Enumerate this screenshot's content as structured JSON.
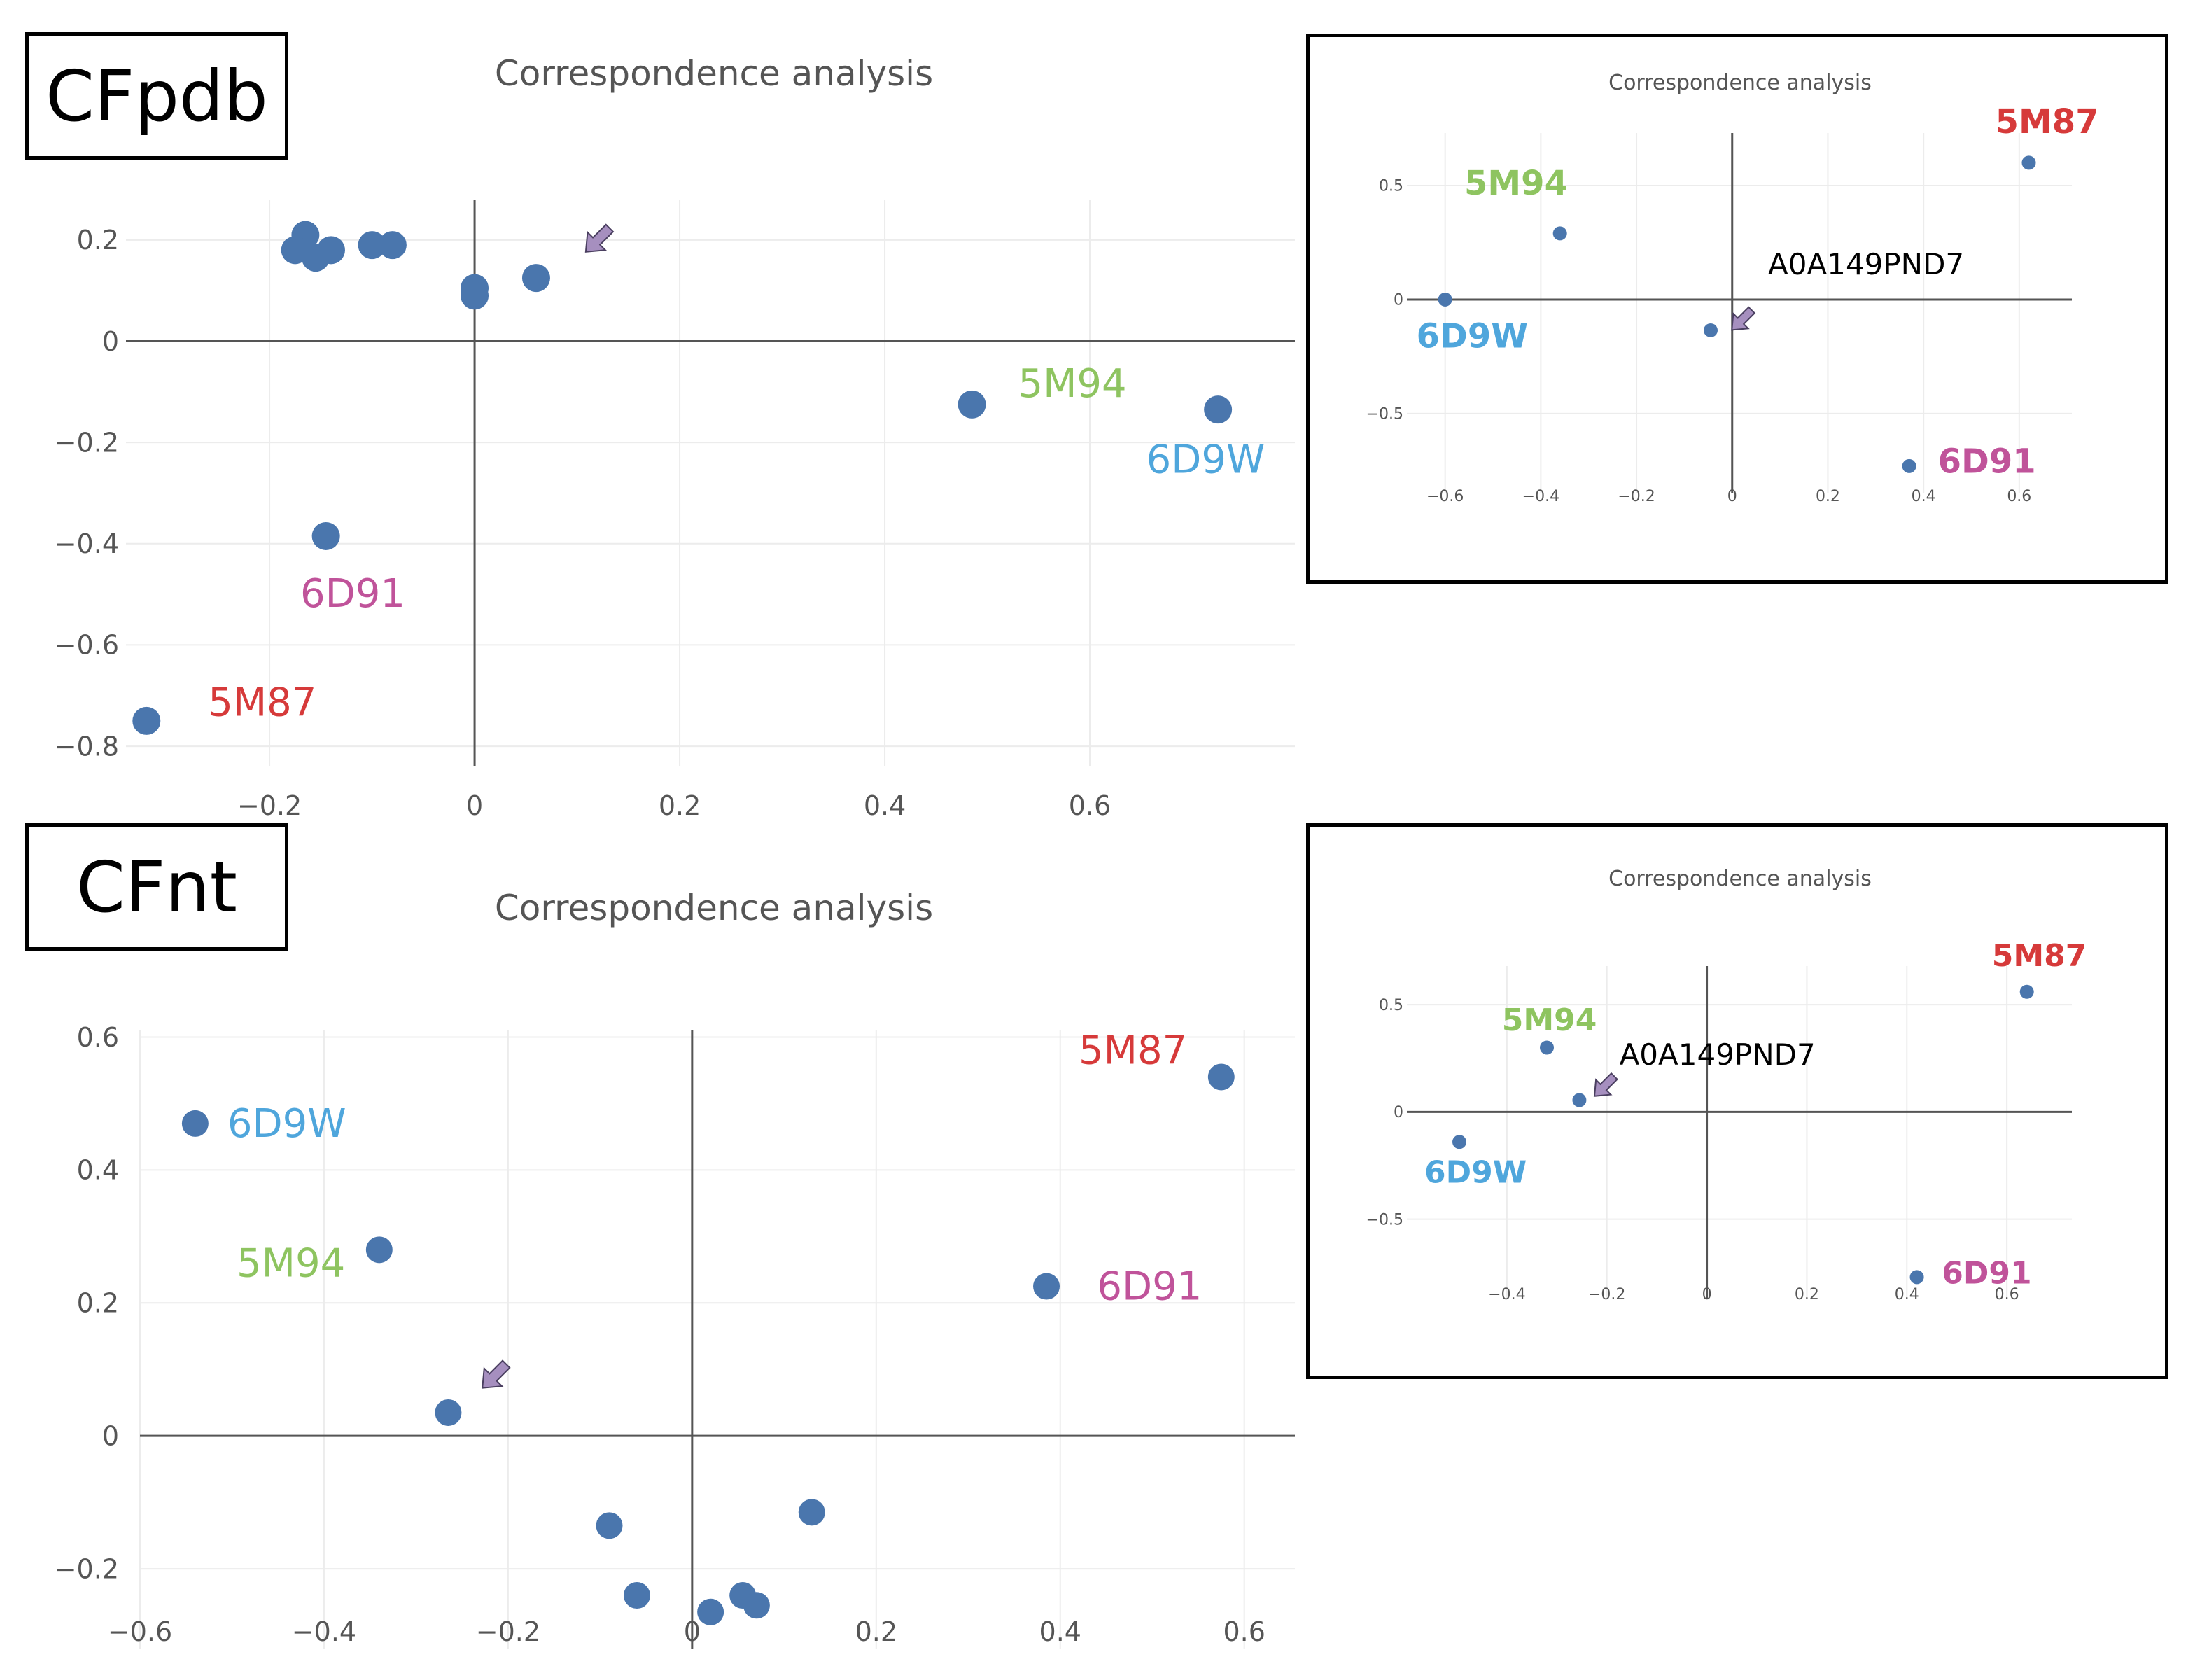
{
  "panels": [
    {
      "label": "CFpdb"
    },
    {
      "label": "CFnt"
    }
  ],
  "colors": {
    "point": "#4a76ad",
    "arrow": "#a68fbf",
    "arrow_stroke": "#4a3f60",
    "grid": "#ececec",
    "zeroline": "#555555",
    "5M87": "#d63a3a",
    "5M94": "#8ec460",
    "6D9W": "#4fa6dc",
    "6D91": "#c0539a"
  },
  "chart_data": [
    {
      "type": "scatter",
      "title": "Correspondence analysis",
      "xticks": [
        "−0.2",
        "0",
        "0.2",
        "0.4",
        "0.6"
      ],
      "xtick_values": [
        -0.2,
        0,
        0.2,
        0.4,
        0.6
      ],
      "yticks": [
        "0.2",
        "0",
        "−0.2",
        "−0.4",
        "−0.6",
        "−0.8"
      ],
      "ytick_values": [
        0.2,
        0,
        -0.2,
        -0.4,
        -0.6,
        -0.8
      ],
      "xlim": [
        -0.34,
        0.8
      ],
      "ylim": [
        -0.84,
        0.28
      ],
      "points": [
        {
          "x": -0.165,
          "y": 0.21
        },
        {
          "x": -0.175,
          "y": 0.18
        },
        {
          "x": -0.155,
          "y": 0.165
        },
        {
          "x": -0.14,
          "y": 0.18
        },
        {
          "x": -0.1,
          "y": 0.19
        },
        {
          "x": -0.08,
          "y": 0.19
        },
        {
          "x": 0.0,
          "y": 0.105
        },
        {
          "x": 0.0,
          "y": 0.09
        },
        {
          "x": 0.06,
          "y": 0.125
        },
        {
          "x": 0.485,
          "y": -0.125
        },
        {
          "x": 0.725,
          "y": -0.135
        },
        {
          "x": -0.145,
          "y": -0.385
        },
        {
          "x": -0.32,
          "y": -0.75
        }
      ],
      "labels": [
        {
          "text": "5M94",
          "x": 0.53,
          "y": -0.11,
          "color_key": "5M94"
        },
        {
          "text": "6D9W",
          "x": 0.655,
          "y": -0.26,
          "color_key": "6D9W"
        },
        {
          "text": "6D91",
          "x": -0.17,
          "y": -0.525,
          "color_key": "6D91"
        },
        {
          "text": "5M87",
          "x": -0.26,
          "y": -0.74,
          "color_key": "5M87"
        }
      ],
      "arrow": {
        "x": 0.12,
        "y": 0.2,
        "direction": "down-left"
      }
    },
    {
      "type": "scatter",
      "title": "Correspondence analysis",
      "xticks": [
        "−0.6",
        "−0.4",
        "−0.2",
        "0",
        "0.2",
        "0.4",
        "0.6"
      ],
      "xtick_values": [
        -0.6,
        -0.4,
        -0.2,
        0,
        0.2,
        0.4,
        0.6
      ],
      "yticks": [
        "0.6",
        "0.4",
        "0.2",
        "0",
        "−0.2"
      ],
      "ytick_values": [
        0.6,
        0.4,
        0.2,
        0,
        -0.2
      ],
      "xlim": [
        -0.6,
        0.655
      ],
      "ylim": [
        -0.32,
        0.61
      ],
      "points": [
        {
          "x": -0.54,
          "y": 0.47
        },
        {
          "x": -0.34,
          "y": 0.28
        },
        {
          "x": -0.265,
          "y": 0.035
        },
        {
          "x": -0.09,
          "y": -0.135
        },
        {
          "x": -0.06,
          "y": -0.24
        },
        {
          "x": 0.02,
          "y": -0.265
        },
        {
          "x": 0.055,
          "y": -0.24
        },
        {
          "x": 0.07,
          "y": -0.255
        },
        {
          "x": 0.13,
          "y": -0.115
        },
        {
          "x": 0.385,
          "y": 0.225
        },
        {
          "x": 0.575,
          "y": 0.54
        }
      ],
      "labels": [
        {
          "text": "6D9W",
          "x": -0.505,
          "y": 0.45,
          "color_key": "6D9W"
        },
        {
          "text": "5M94",
          "x": -0.495,
          "y": 0.24,
          "color_key": "5M94"
        },
        {
          "text": "5M87",
          "x": 0.42,
          "y": 0.56,
          "color_key": "5M87"
        },
        {
          "text": "6D91",
          "x": 0.44,
          "y": 0.205,
          "color_key": "6D91"
        }
      ],
      "arrow": {
        "x": -0.215,
        "y": 0.09,
        "direction": "down-left"
      }
    },
    {
      "type": "scatter",
      "title": "Correspondence analysis",
      "xticks": [
        "−0.6",
        "−0.4",
        "−0.2",
        "0",
        "0.2",
        "0.4",
        "0.6"
      ],
      "xtick_values": [
        -0.6,
        -0.4,
        -0.2,
        0,
        0.2,
        0.4,
        0.6
      ],
      "yticks": [
        "0.5",
        "0",
        "−0.5"
      ],
      "ytick_values": [
        0.5,
        0,
        -0.5
      ],
      "xlim": [
        -0.68,
        0.71
      ],
      "ylim": [
        -0.85,
        0.73
      ],
      "points": [
        {
          "x": 0.62,
          "y": 0.6
        },
        {
          "x": -0.36,
          "y": 0.29
        },
        {
          "x": -0.6,
          "y": 0.0
        },
        {
          "x": -0.045,
          "y": -0.135
        },
        {
          "x": 0.37,
          "y": -0.73
        }
      ],
      "labels": [
        {
          "text": "5M87",
          "x": 0.55,
          "y": 0.73,
          "color_key": "5M87"
        },
        {
          "text": "5M94",
          "x": -0.56,
          "y": 0.46,
          "color_key": "5M94"
        },
        {
          "text": "6D9W",
          "x": -0.66,
          "y": -0.21,
          "color_key": "6D9W"
        },
        {
          "text": "6D91",
          "x": 0.43,
          "y": -0.76,
          "color_key": "6D91"
        }
      ],
      "annotation": {
        "text": "A0A149PND7",
        "x": 0.075,
        "y": 0.11
      },
      "arrow": {
        "x": 0.02,
        "y": -0.09,
        "direction": "down-left"
      }
    },
    {
      "type": "scatter",
      "title": "Correspondence analysis",
      "xticks": [
        "−0.4",
        "−0.2",
        "0",
        "0.2",
        "0.4",
        "0.6"
      ],
      "xtick_values": [
        -0.4,
        -0.2,
        0,
        0.2,
        0.4,
        0.6
      ],
      "yticks": [
        "0.5",
        "0",
        "−0.5"
      ],
      "ytick_values": [
        0.5,
        0,
        -0.5
      ],
      "xlim": [
        -0.6,
        0.73
      ],
      "ylim": [
        -0.87,
        0.68
      ],
      "points": [
        {
          "x": 0.64,
          "y": 0.56
        },
        {
          "x": -0.32,
          "y": 0.3
        },
        {
          "x": -0.255,
          "y": 0.055
        },
        {
          "x": -0.495,
          "y": -0.14
        },
        {
          "x": 0.42,
          "y": -0.77
        }
      ],
      "labels": [
        {
          "text": "5M87",
          "x": 0.57,
          "y": 0.68,
          "color_key": "5M87"
        },
        {
          "text": "5M94",
          "x": -0.41,
          "y": 0.38,
          "color_key": "5M94"
        },
        {
          "text": "6D9W",
          "x": -0.565,
          "y": -0.33,
          "color_key": "6D9W"
        },
        {
          "text": "6D91",
          "x": 0.47,
          "y": -0.8,
          "color_key": "6D91"
        }
      ],
      "annotation": {
        "text": "A0A149PND7",
        "x": -0.175,
        "y": 0.22
      },
      "arrow": {
        "x": -0.205,
        "y": 0.12,
        "direction": "down-left"
      }
    }
  ]
}
